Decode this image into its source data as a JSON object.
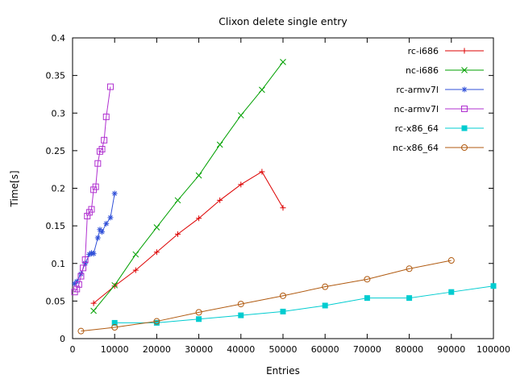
{
  "window": {
    "title": "Clixon delete single entry"
  },
  "chart_data": {
    "type": "line",
    "title": "Clixon delete single entry",
    "xlabel": "Entries",
    "ylabel": "Time[s]",
    "xlim": [
      0,
      100000
    ],
    "ylim": [
      0,
      0.4
    ],
    "grid": false,
    "legend_position": "top-right-inside",
    "xticks": [
      {
        "value": 0,
        "label": "0"
      },
      {
        "value": 10000,
        "label": "10000"
      },
      {
        "value": 20000,
        "label": "20000"
      },
      {
        "value": 30000,
        "label": "30000"
      },
      {
        "value": 40000,
        "label": "40000"
      },
      {
        "value": 50000,
        "label": "50000"
      },
      {
        "value": 60000,
        "label": "60000"
      },
      {
        "value": 70000,
        "label": "70000"
      },
      {
        "value": 80000,
        "label": "80000"
      },
      {
        "value": 90000,
        "label": "90000"
      },
      {
        "value": 100000,
        "label": "100000"
      }
    ],
    "yticks": [
      {
        "value": 0,
        "label": "0"
      },
      {
        "value": 0.05,
        "label": "0.05"
      },
      {
        "value": 0.1,
        "label": "0.1"
      },
      {
        "value": 0.15,
        "label": "0.15"
      },
      {
        "value": 0.2,
        "label": "0.2"
      },
      {
        "value": 0.25,
        "label": "0.25"
      },
      {
        "value": 0.3,
        "label": "0.3"
      },
      {
        "value": 0.35,
        "label": "0.35"
      },
      {
        "value": 0.4,
        "label": "0.4"
      }
    ],
    "series": [
      {
        "name": "rc-i686",
        "color": "#dd0000",
        "marker": "plus",
        "points": [
          [
            5000,
            0.047
          ],
          [
            10000,
            0.07
          ],
          [
            15000,
            0.091
          ],
          [
            20000,
            0.115
          ],
          [
            25000,
            0.139
          ],
          [
            30000,
            0.16
          ],
          [
            35000,
            0.184
          ],
          [
            40000,
            0.205
          ],
          [
            45000,
            0.222
          ],
          [
            50000,
            0.174
          ]
        ]
      },
      {
        "name": "nc-i686",
        "color": "#00a000",
        "marker": "cross",
        "points": [
          [
            5000,
            0.037
          ],
          [
            10000,
            0.071
          ],
          [
            15000,
            0.112
          ],
          [
            20000,
            0.148
          ],
          [
            25000,
            0.184
          ],
          [
            30000,
            0.217
          ],
          [
            35000,
            0.258
          ],
          [
            40000,
            0.297
          ],
          [
            45000,
            0.331
          ],
          [
            50000,
            0.368
          ]
        ]
      },
      {
        "name": "rc-armv7l",
        "color": "#3050d8",
        "marker": "asterisk",
        "points": [
          [
            500,
            0.073
          ],
          [
            1000,
            0.076
          ],
          [
            2000,
            0.086
          ],
          [
            3000,
            0.1
          ],
          [
            4000,
            0.112
          ],
          [
            4500,
            0.114
          ],
          [
            5000,
            0.113
          ],
          [
            6000,
            0.134
          ],
          [
            6500,
            0.145
          ],
          [
            7000,
            0.142
          ],
          [
            8000,
            0.153
          ],
          [
            9000,
            0.161
          ],
          [
            10000,
            0.193
          ]
        ]
      },
      {
        "name": "nc-armv7l",
        "color": "#b030d0",
        "marker": "square-open",
        "points": [
          [
            500,
            0.062
          ],
          [
            1000,
            0.066
          ],
          [
            1500,
            0.072
          ],
          [
            2000,
            0.083
          ],
          [
            2500,
            0.094
          ],
          [
            3000,
            0.105
          ],
          [
            3500,
            0.163
          ],
          [
            4000,
            0.168
          ],
          [
            4500,
            0.172
          ],
          [
            5000,
            0.198
          ],
          [
            5500,
            0.202
          ],
          [
            6000,
            0.233
          ],
          [
            6500,
            0.249
          ],
          [
            7000,
            0.252
          ],
          [
            7500,
            0.264
          ],
          [
            8000,
            0.295
          ],
          [
            9000,
            0.335
          ]
        ]
      },
      {
        "name": "rc-x86_64",
        "color": "#00ccd0",
        "marker": "square-filled",
        "points": [
          [
            10000,
            0.021
          ],
          [
            20000,
            0.021
          ],
          [
            30000,
            0.026
          ],
          [
            40000,
            0.031
          ],
          [
            50000,
            0.036
          ],
          [
            60000,
            0.044
          ],
          [
            70000,
            0.054
          ],
          [
            80000,
            0.054
          ],
          [
            90000,
            0.062
          ],
          [
            100000,
            0.07
          ]
        ]
      },
      {
        "name": "nc-x86_64",
        "color": "#b05a10",
        "marker": "circle-open",
        "points": [
          [
            2000,
            0.01
          ],
          [
            10000,
            0.015
          ],
          [
            20000,
            0.023
          ],
          [
            30000,
            0.035
          ],
          [
            40000,
            0.046
          ],
          [
            50000,
            0.057
          ],
          [
            60000,
            0.069
          ],
          [
            70000,
            0.079
          ],
          [
            80000,
            0.093
          ],
          [
            90000,
            0.104
          ]
        ]
      }
    ]
  }
}
